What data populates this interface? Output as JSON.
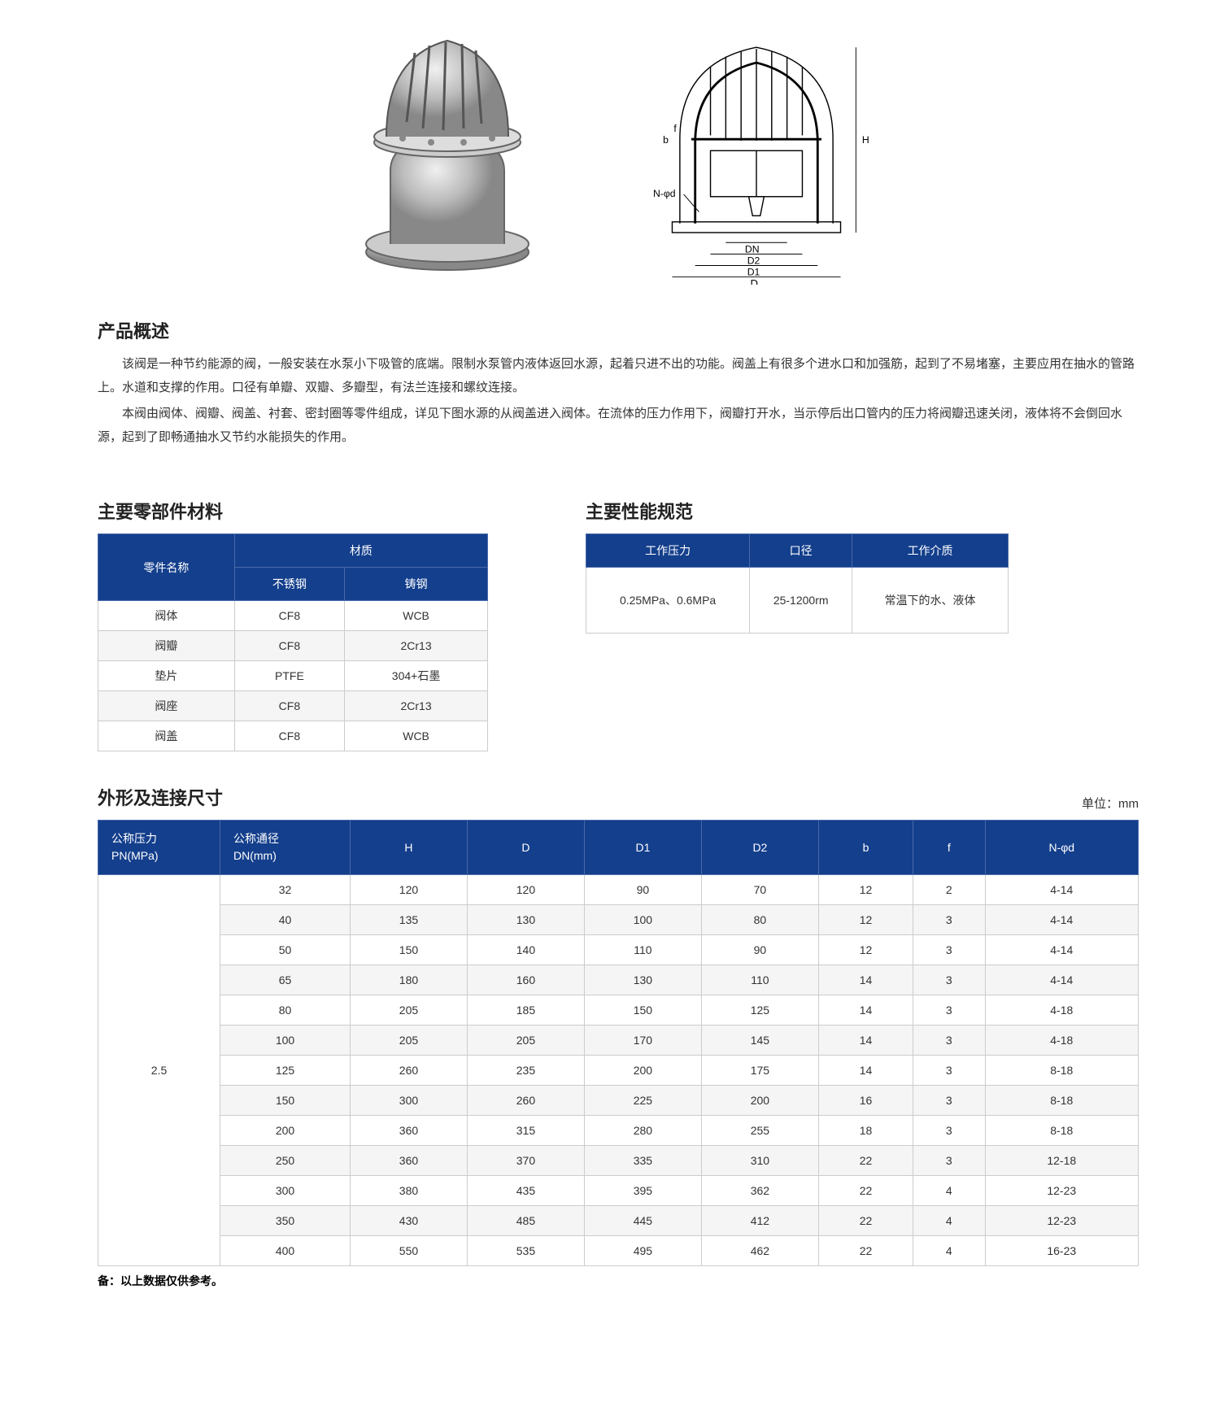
{
  "colors": {
    "header_bg": "#143f8c",
    "header_border": "#4a6aaa",
    "header_text": "#ffffff",
    "cell_border": "#cccccc",
    "stripe_bg": "#f5f5f5",
    "text": "#333333"
  },
  "sections": {
    "overview_title": "产品概述",
    "overview_p1": "该阀是一种节约能源的阀，一般安装在水泵小下吸管的底端。限制水泵管内液体返回水源，起着只进不出的功能。阀盖上有很多个进水口和加强筋，起到了不易堵塞，主要应用在抽水的管路上。水道和支撑的作用。口径有单瓣、双瓣、多瓣型，有法兰连接和螺纹连接。",
    "overview_p2": "本阀由阀体、阀瓣、阀盖、衬套、密封圈等零件组成，详见下图水源的从阀盖进入阀体。在流体的压力作用下，阀瓣打开水，当示停后出口管内的压力将阀瓣迅速关闭，液体将不会倒回水源，起到了即畅通抽水又节约水能损失的作用。",
    "materials_title": "主要零部件材料",
    "performance_title": "主要性能规范",
    "dimensions_title": "外形及连接尺寸",
    "unit_label": "单位：mm",
    "footnote": "备：以上数据仅供参考。"
  },
  "diagram_labels": [
    "N-φd",
    "DN",
    "D2",
    "D1",
    "D",
    "H",
    "b",
    "f"
  ],
  "materials_table": {
    "header_part": "零件名称",
    "header_material": "材质",
    "header_ss": "不锈钢",
    "header_cs": "铸钢",
    "rows": [
      {
        "part": "阀体",
        "ss": "CF8",
        "cs": "WCB"
      },
      {
        "part": "阀瓣",
        "ss": "CF8",
        "cs": "2Cr13"
      },
      {
        "part": "垫片",
        "ss": "PTFE",
        "cs": "304+石墨"
      },
      {
        "part": "阀座",
        "ss": "CF8",
        "cs": "2Cr13"
      },
      {
        "part": "阀盖",
        "ss": "CF8",
        "cs": "WCB"
      }
    ]
  },
  "performance_table": {
    "header_pressure": "工作压力",
    "header_diameter": "口径",
    "header_medium": "工作介质",
    "pressure": "0.25MPa、0.6MPa",
    "diameter": "25-1200rm",
    "medium": "常温下的水、液体"
  },
  "dimensions_table": {
    "headers": {
      "pn": "公称压力\nPN(MPa)",
      "dn": "公称通径\nDN(mm)",
      "h": "H",
      "d": "D",
      "d1": "D1",
      "d2": "D2",
      "b": "b",
      "f": "f",
      "nphi": "N-φd"
    },
    "pn_value": "2.5",
    "rows": [
      {
        "dn": "32",
        "h": "120",
        "d": "120",
        "d1": "90",
        "d2": "70",
        "b": "12",
        "f": "2",
        "n": "4-14"
      },
      {
        "dn": "40",
        "h": "135",
        "d": "130",
        "d1": "100",
        "d2": "80",
        "b": "12",
        "f": "3",
        "n": "4-14"
      },
      {
        "dn": "50",
        "h": "150",
        "d": "140",
        "d1": "110",
        "d2": "90",
        "b": "12",
        "f": "3",
        "n": "4-14"
      },
      {
        "dn": "65",
        "h": "180",
        "d": "160",
        "d1": "130",
        "d2": "110",
        "b": "14",
        "f": "3",
        "n": "4-14"
      },
      {
        "dn": "80",
        "h": "205",
        "d": "185",
        "d1": "150",
        "d2": "125",
        "b": "14",
        "f": "3",
        "n": "4-18"
      },
      {
        "dn": "100",
        "h": "205",
        "d": "205",
        "d1": "170",
        "d2": "145",
        "b": "14",
        "f": "3",
        "n": "4-18"
      },
      {
        "dn": "125",
        "h": "260",
        "d": "235",
        "d1": "200",
        "d2": "175",
        "b": "14",
        "f": "3",
        "n": "8-18"
      },
      {
        "dn": "150",
        "h": "300",
        "d": "260",
        "d1": "225",
        "d2": "200",
        "b": "16",
        "f": "3",
        "n": "8-18"
      },
      {
        "dn": "200",
        "h": "360",
        "d": "315",
        "d1": "280",
        "d2": "255",
        "b": "18",
        "f": "3",
        "n": "8-18"
      },
      {
        "dn": "250",
        "h": "360",
        "d": "370",
        "d1": "335",
        "d2": "310",
        "b": "22",
        "f": "3",
        "n": "12-18"
      },
      {
        "dn": "300",
        "h": "380",
        "d": "435",
        "d1": "395",
        "d2": "362",
        "b": "22",
        "f": "4",
        "n": "12-23"
      },
      {
        "dn": "350",
        "h": "430",
        "d": "485",
        "d1": "445",
        "d2": "412",
        "b": "22",
        "f": "4",
        "n": "12-23"
      },
      {
        "dn": "400",
        "h": "550",
        "d": "535",
        "d1": "495",
        "d2": "462",
        "b": "22",
        "f": "4",
        "n": "16-23"
      }
    ]
  }
}
